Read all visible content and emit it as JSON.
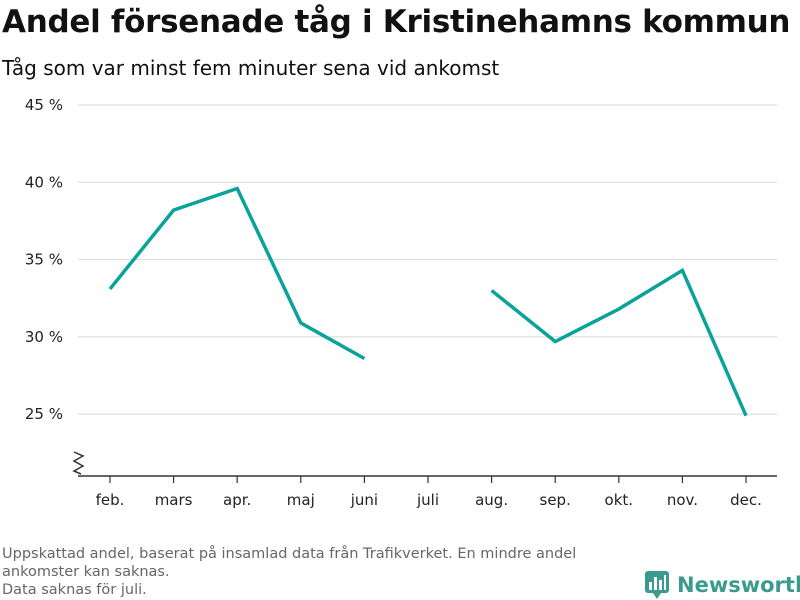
{
  "header": {
    "title": "Andel försenade tåg i Kristinehamns kommun",
    "subtitle": "Tåg som var minst fem minuter sena vid ankomst"
  },
  "footer": {
    "note_line1": "Uppskattad andel, baserat på insamlad data från Trafikverket. En mindre andel ankomster kan saknas.",
    "note_line2": "Data saknas för juli.",
    "brand": "Newsworthy",
    "brand_color": "#3a9a8f",
    "brand_icon": "bar-chart-logo-icon"
  },
  "chart_data": {
    "type": "line",
    "title": "Andel försenade tåg i Kristinehamns kommun",
    "subtitle": "Tåg som var minst fem minuter sena vid ankomst",
    "categories": [
      "feb.",
      "mars",
      "apr.",
      "maj",
      "juni",
      "juli",
      "aug.",
      "sep.",
      "okt.",
      "nov.",
      "dec."
    ],
    "series": [
      {
        "values": [
          33.1,
          38.2,
          39.6,
          30.9,
          28.6,
          null,
          33.0,
          29.7,
          31.8,
          34.3,
          24.9
        ],
        "color": "#0aa399"
      }
    ],
    "y_ticks": [
      25,
      30,
      35,
      40,
      45
    ],
    "y_tick_labels": [
      "25 %",
      "30 %",
      "35 %",
      "40 %",
      "45 %"
    ],
    "ylim": [
      21,
      45
    ],
    "y_axis_break": true,
    "grid": true,
    "grid_color": "#dddddd",
    "xlabel": "",
    "ylabel": ""
  }
}
